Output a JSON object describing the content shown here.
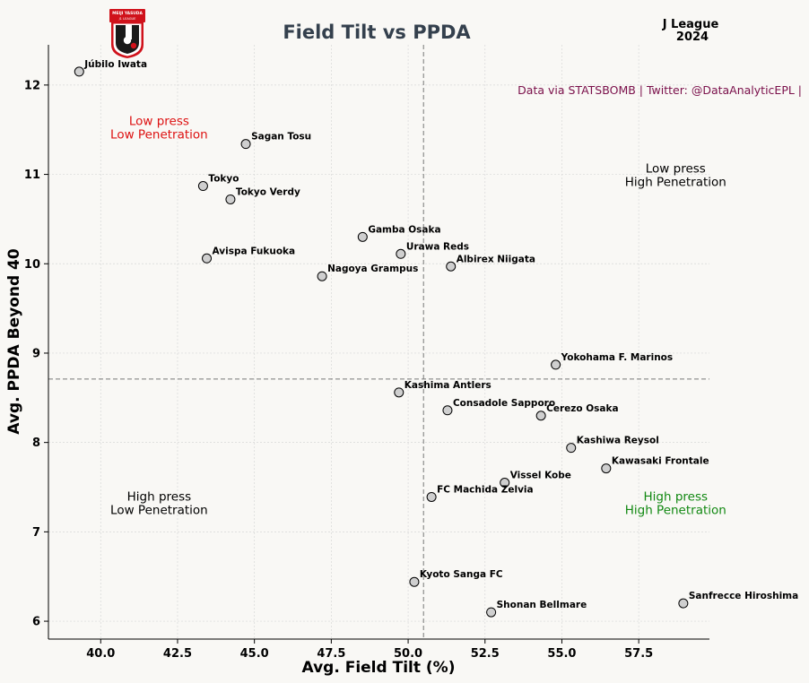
{
  "chart_data": {
    "type": "scatter",
    "title": "Field Tilt vs PPDA",
    "league": [
      "J League",
      "2024"
    ],
    "source": "Data via STATSBOMB | Twitter: @DataAnalyticEPL |",
    "xlabel": "Avg. Field Tilt (%)",
    "ylabel": "Avg. PPDA Beyond 40",
    "xlim": [
      38.3,
      59.8
    ],
    "ylim": [
      5.8,
      12.45
    ],
    "xticks": [
      40.0,
      42.5,
      45.0,
      47.5,
      50.0,
      52.5,
      55.0,
      57.5
    ],
    "yticks": [
      6,
      7,
      8,
      9,
      10,
      11,
      12
    ],
    "grid": true,
    "reference_lines": {
      "x": 50.5,
      "y": 8.71
    },
    "logo": {
      "name": "j-league-logo",
      "text": [
        "MEIJI YASUDA",
        "J1 LEAGUE"
      ]
    },
    "quadrants": [
      {
        "lines": [
          "Low press",
          "Low Penetration"
        ],
        "x": 41.9,
        "y": 11.55,
        "color": "#dd1111"
      },
      {
        "lines": [
          "Low press",
          "High Penetration"
        ],
        "x": 58.7,
        "y": 11.02,
        "color": "#000000"
      },
      {
        "lines": [
          "High press",
          "Low Penetration"
        ],
        "x": 41.9,
        "y": 7.35,
        "color": "#000000"
      },
      {
        "lines": [
          "High press",
          "High Penetration"
        ],
        "x": 58.7,
        "y": 7.35,
        "color": "#118811"
      }
    ],
    "points": [
      {
        "team": "Júbilo Iwata",
        "x": 39.3,
        "y": 12.15
      },
      {
        "team": "Sagan Tosu",
        "x": 44.72,
        "y": 11.34
      },
      {
        "team": "Tokyo",
        "x": 43.33,
        "y": 10.87
      },
      {
        "team": "Tokyo Verdy",
        "x": 44.22,
        "y": 10.72
      },
      {
        "team": "Gamba Osaka",
        "x": 48.52,
        "y": 10.3
      },
      {
        "team": "Urawa Reds",
        "x": 49.76,
        "y": 10.11
      },
      {
        "team": "Avispa Fukuoka",
        "x": 43.45,
        "y": 10.06
      },
      {
        "team": "Albirex Niigata",
        "x": 51.39,
        "y": 9.97
      },
      {
        "team": "Nagoya Grampus",
        "x": 47.2,
        "y": 9.86
      },
      {
        "team": "Yokohama F. Marinos",
        "x": 54.8,
        "y": 8.87
      },
      {
        "team": "Kashima Antlers",
        "x": 49.7,
        "y": 8.56
      },
      {
        "team": "Consadole Sapporo",
        "x": 51.28,
        "y": 8.36
      },
      {
        "team": "Cerezo Osaka",
        "x": 54.32,
        "y": 8.3
      },
      {
        "team": "Kashiwa Reysol",
        "x": 55.3,
        "y": 7.94
      },
      {
        "team": "Kawasaki Frontale",
        "x": 56.44,
        "y": 7.71
      },
      {
        "team": "Vissel Kobe",
        "x": 53.14,
        "y": 7.55
      },
      {
        "team": "FC Machida Zelvia",
        "x": 50.76,
        "y": 7.39
      },
      {
        "team": "Kyoto Sanga FC",
        "x": 50.2,
        "y": 6.44
      },
      {
        "team": "Sanfrecce Hiroshima",
        "x": 58.95,
        "y": 6.2
      },
      {
        "team": "Shonan Bellmare",
        "x": 52.7,
        "y": 6.1
      }
    ]
  }
}
